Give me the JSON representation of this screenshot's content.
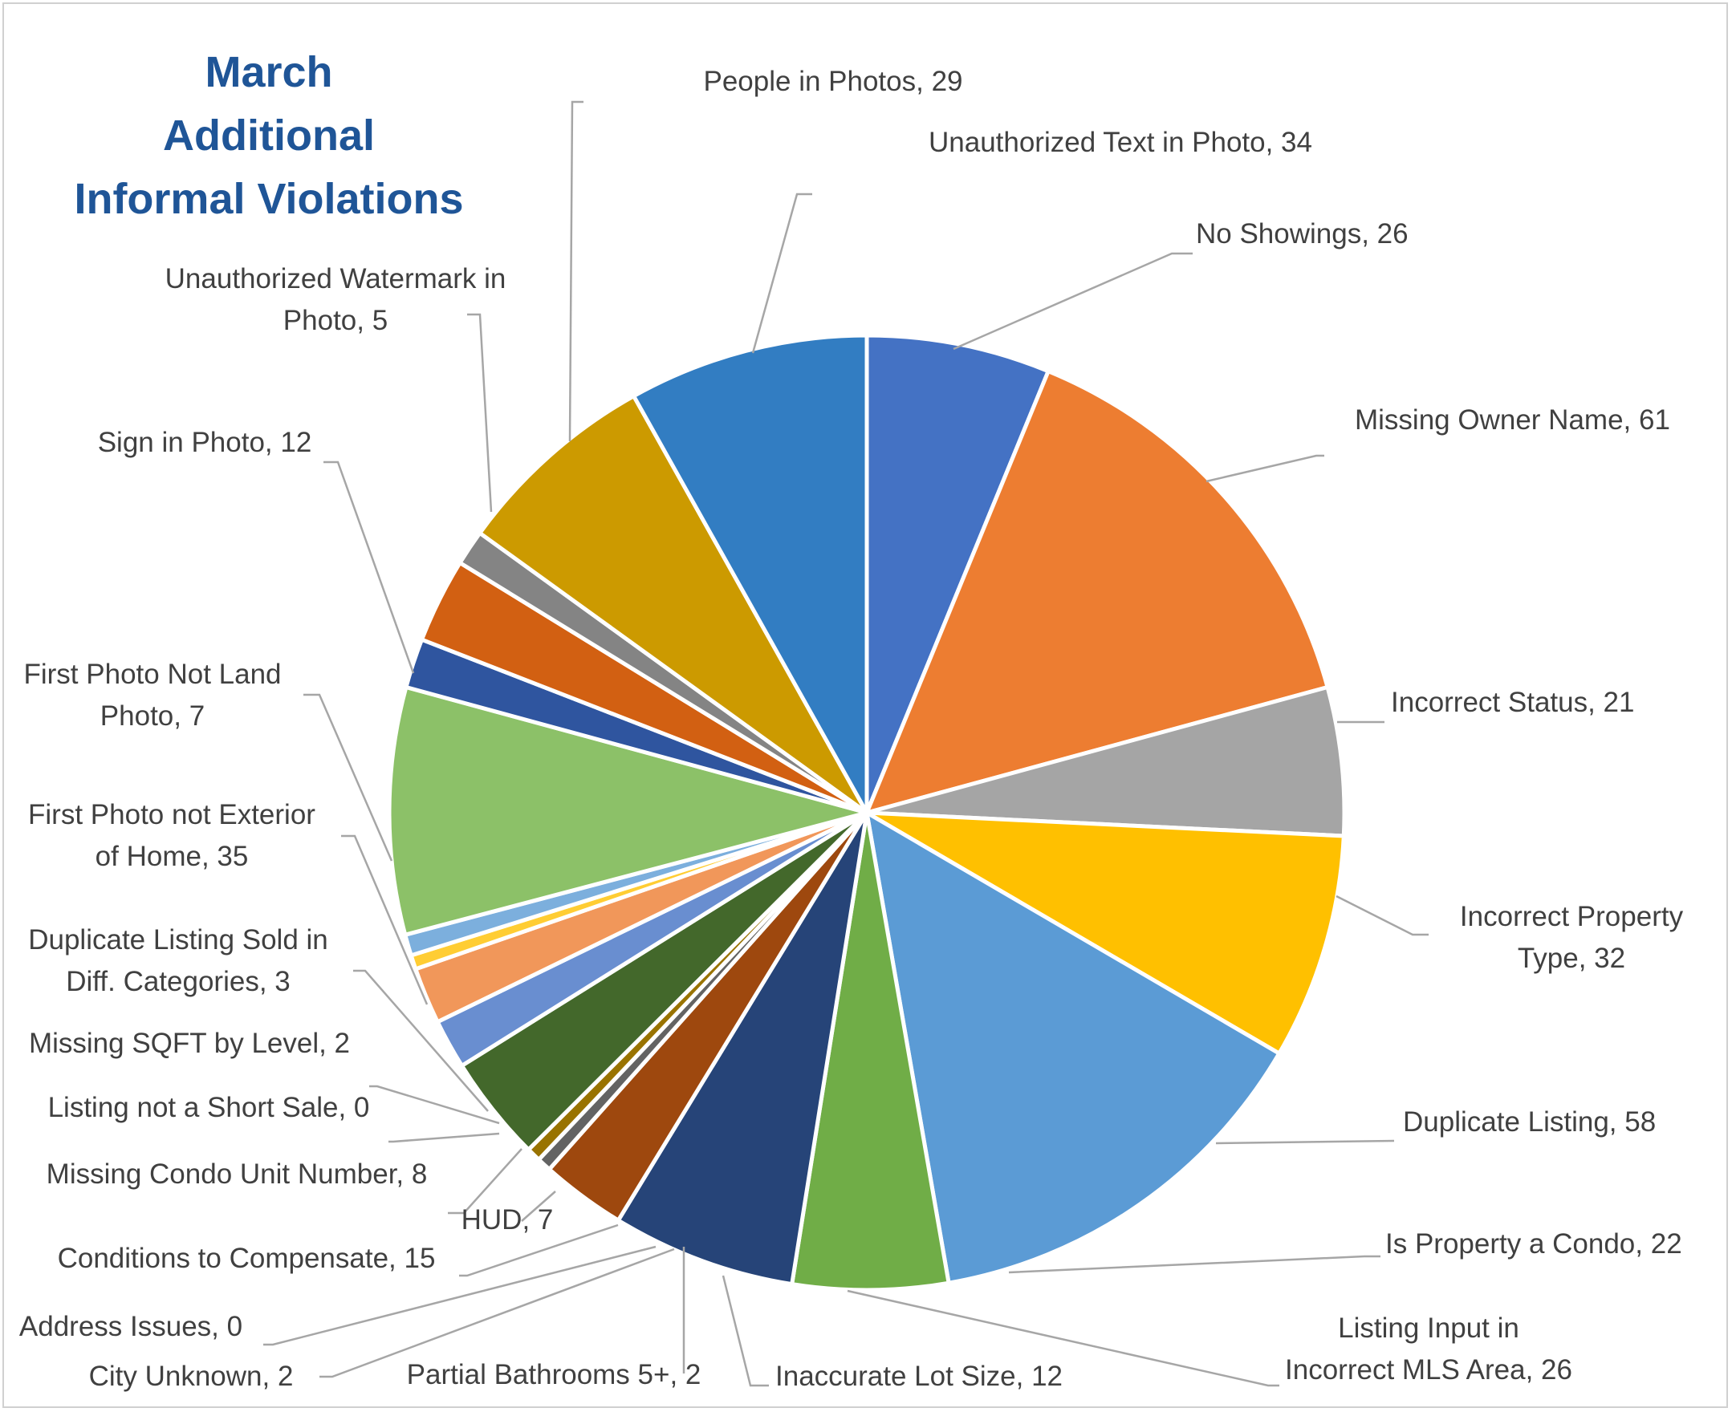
{
  "chart_data": {
    "type": "pie",
    "title": [
      "March",
      "Additional",
      "Informal Violations"
    ],
    "start_angle_deg": 0,
    "direction": "clockwise",
    "legend": "none",
    "data_labels": "category, value",
    "slices": [
      {
        "label": [
          "No Showings, 26"
        ],
        "value": 26,
        "color": "#4472c4"
      },
      {
        "label": [
          "Missing Owner Name, 61"
        ],
        "value": 61,
        "color": "#ed7d31"
      },
      {
        "label": [
          "Incorrect Status, 21"
        ],
        "value": 21,
        "color": "#a5a5a5"
      },
      {
        "label": [
          "Incorrect Property",
          "Type, 32"
        ],
        "value": 32,
        "color": "#ffc000"
      },
      {
        "label": [
          "Duplicate Listing, 58"
        ],
        "value": 58,
        "color": "#5b9bd5"
      },
      {
        "label": [
          "Is Property a Condo, 22"
        ],
        "value": 22,
        "color": "#70ad47"
      },
      {
        "label": [
          "Listing Input in",
          "Incorrect MLS Area, 26"
        ],
        "value": 26,
        "color": "#264478"
      },
      {
        "label": [
          "Inaccurate Lot Size, 12"
        ],
        "value": 12,
        "color": "#9e480e"
      },
      {
        "label": [
          "Partial Bathrooms 5+, 2"
        ],
        "value": 2,
        "color": "#636363"
      },
      {
        "label": [
          "City Unknown, 2"
        ],
        "value": 2,
        "color": "#997300"
      },
      {
        "label": [
          "Address Issues, 0"
        ],
        "value": 0,
        "color": "#255e91"
      },
      {
        "label": [
          "Conditions to Compensate, 15"
        ],
        "value": 15,
        "color": "#43682b"
      },
      {
        "label": [
          "HUD, 7"
        ],
        "value": 7,
        "color": "#698ed0"
      },
      {
        "label": [
          "Missing Condo Unit Number, 8"
        ],
        "value": 8,
        "color": "#f1975a"
      },
      {
        "label": [
          "Listing not a Short Sale, 0"
        ],
        "value": 0,
        "color": "#b7b7b7"
      },
      {
        "label": [
          "Missing SQFT by Level, 2"
        ],
        "value": 2,
        "color": "#ffcd33"
      },
      {
        "label": [
          "Duplicate Listing Sold in",
          "Diff. Categories, 3"
        ],
        "value": 3,
        "color": "#7cafdd"
      },
      {
        "label": [
          "First Photo not Exterior",
          "of Home, 35"
        ],
        "value": 35,
        "color": "#8cc168"
      },
      {
        "label": [
          "First Photo Not Land",
          "Photo, 7"
        ],
        "value": 7,
        "color": "#2f559f"
      },
      {
        "label": [
          "Sign in Photo, 12"
        ],
        "value": 12,
        "color": "#d26012"
      },
      {
        "label": [
          "Unauthorized Watermark in",
          "Photo, 5"
        ],
        "value": 5,
        "color": "#848484"
      },
      {
        "label": [
          "People in Photos, 29"
        ],
        "value": 29,
        "color": "#cc9a00"
      },
      {
        "label": [
          "Unauthorized Text in Photo, 34"
        ],
        "value": 34,
        "color": "#327dc2"
      }
    ]
  }
}
